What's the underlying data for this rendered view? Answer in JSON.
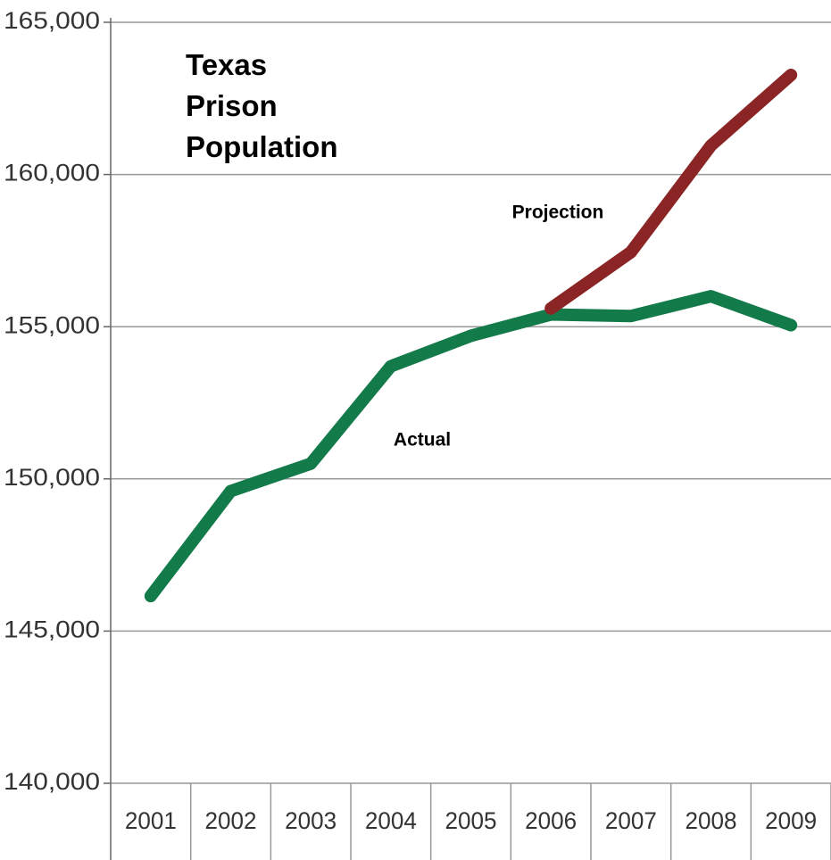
{
  "chart_data": {
    "type": "line",
    "title": "Texas Prison Population",
    "annotations": [
      "Projection",
      "Actual"
    ],
    "categories": [
      "2001",
      "2002",
      "2003",
      "2004",
      "2005",
      "2006",
      "2007",
      "2008",
      "2009"
    ],
    "series": [
      {
        "name": "Actual",
        "color": "#137a4a",
        "values": [
          146150,
          149600,
          150500,
          153700,
          154700,
          155400,
          155350,
          156000,
          155050
        ]
      },
      {
        "name": "Projection",
        "color": "#8b2525",
        "values": [
          null,
          null,
          null,
          null,
          null,
          155600,
          157450,
          160950,
          163270
        ]
      }
    ],
    "ylim": [
      140000,
      165000
    ],
    "yticks": [
      {
        "value": 140000,
        "label": "140,000"
      },
      {
        "value": 145000,
        "label": "145,000"
      },
      {
        "value": 150000,
        "label": "150,000"
      },
      {
        "value": 155000,
        "label": "155,000"
      },
      {
        "value": 160000,
        "label": "160,000"
      },
      {
        "value": 165000,
        "label": "165,000"
      }
    ],
    "grid": true
  }
}
